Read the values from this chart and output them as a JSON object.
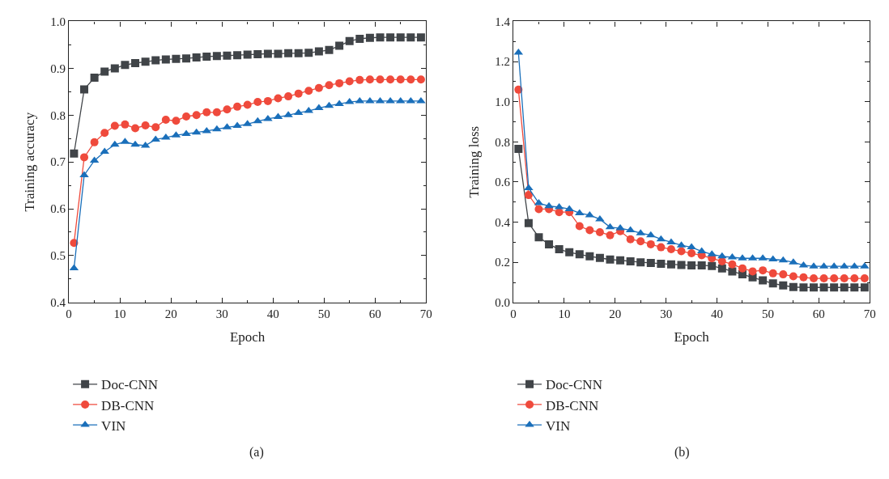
{
  "chart_data": [
    {
      "type": "line",
      "xlabel": "Epoch",
      "ylabel": "Training accuracy",
      "annotations": [
        "(a)"
      ],
      "x": [
        1,
        3,
        5,
        7,
        9,
        11,
        13,
        15,
        17,
        19,
        21,
        23,
        25,
        27,
        29,
        31,
        33,
        35,
        37,
        39,
        41,
        43,
        45,
        47,
        49,
        51,
        53,
        55,
        57,
        59,
        61,
        63,
        65,
        67,
        69
      ],
      "xlim": [
        0,
        70
      ],
      "xticks": [
        0,
        10,
        20,
        30,
        40,
        50,
        60,
        70
      ],
      "ylim": [
        0.4,
        1.0
      ],
      "yticks": [
        {
          "value": 0.4,
          "label": "0.4"
        },
        {
          "value": 0.5,
          "label": "0.5"
        },
        {
          "value": 0.6,
          "label": "0.6"
        },
        {
          "value": 0.7,
          "label": "0.7"
        },
        {
          "value": 0.8,
          "label": "0.8"
        },
        {
          "value": 0.9,
          "label": "0.9"
        },
        {
          "value": 1.0,
          "label": "1.0"
        }
      ],
      "legend": "bottom",
      "series": [
        {
          "name": "Doc-CNN",
          "color": "#404448",
          "marker": "square",
          "values": [
            0.718,
            0.855,
            0.88,
            0.893,
            0.9,
            0.907,
            0.911,
            0.914,
            0.917,
            0.919,
            0.92,
            0.921,
            0.923,
            0.925,
            0.926,
            0.927,
            0.928,
            0.929,
            0.93,
            0.931,
            0.931,
            0.932,
            0.932,
            0.933,
            0.936,
            0.939,
            0.948,
            0.958,
            0.963,
            0.965,
            0.966,
            0.966,
            0.966,
            0.966,
            0.966
          ]
        },
        {
          "name": "DB-CNN",
          "color": "#ef4a3c",
          "marker": "circle",
          "values": [
            0.527,
            0.71,
            0.742,
            0.762,
            0.777,
            0.78,
            0.772,
            0.778,
            0.774,
            0.79,
            0.788,
            0.797,
            0.8,
            0.806,
            0.806,
            0.812,
            0.818,
            0.822,
            0.828,
            0.83,
            0.836,
            0.84,
            0.846,
            0.852,
            0.858,
            0.864,
            0.868,
            0.872,
            0.875,
            0.876,
            0.876,
            0.876,
            0.876,
            0.876,
            0.876
          ]
        },
        {
          "name": "VIN",
          "color": "#1a6fba",
          "marker": "triangle",
          "values": [
            0.473,
            0.672,
            0.703,
            0.722,
            0.737,
            0.743,
            0.737,
            0.735,
            0.748,
            0.752,
            0.757,
            0.76,
            0.763,
            0.766,
            0.77,
            0.774,
            0.777,
            0.781,
            0.787,
            0.792,
            0.796,
            0.8,
            0.805,
            0.809,
            0.815,
            0.82,
            0.824,
            0.828,
            0.83,
            0.83,
            0.83,
            0.83,
            0.83,
            0.83,
            0.83
          ]
        }
      ]
    },
    {
      "type": "line",
      "xlabel": "Epoch",
      "ylabel": "Training loss",
      "annotations": [
        "(b)"
      ],
      "x": [
        1,
        3,
        5,
        7,
        9,
        11,
        13,
        15,
        17,
        19,
        21,
        23,
        25,
        27,
        29,
        31,
        33,
        35,
        37,
        39,
        41,
        43,
        45,
        47,
        49,
        51,
        53,
        55,
        57,
        59,
        61,
        63,
        65,
        67,
        69
      ],
      "xlim": [
        0,
        70
      ],
      "xticks": [
        0,
        10,
        20,
        30,
        40,
        50,
        60,
        70
      ],
      "ylim": [
        0.0,
        1.4
      ],
      "yticks": [
        {
          "value": 0,
          "label": "0.0"
        },
        {
          "value": 0.2,
          "label": "0.2"
        },
        {
          "value": 0.4,
          "label": "0.4"
        },
        {
          "value": 0.6,
          "label": "0.6"
        },
        {
          "value": 0.8,
          "label": "0.8"
        },
        {
          "value": 1.0,
          "label": "1.0"
        },
        {
          "value": 1.2,
          "label": "1.2"
        },
        {
          "value": 1.4,
          "label": "1.4"
        }
      ],
      "legend": "bottom",
      "series": [
        {
          "name": "Doc-CNN",
          "color": "#404448",
          "marker": "square",
          "values": [
            0.765,
            0.395,
            0.325,
            0.29,
            0.265,
            0.25,
            0.24,
            0.23,
            0.222,
            0.214,
            0.21,
            0.205,
            0.2,
            0.197,
            0.193,
            0.19,
            0.187,
            0.185,
            0.185,
            0.182,
            0.17,
            0.155,
            0.14,
            0.125,
            0.11,
            0.095,
            0.085,
            0.077,
            0.075,
            0.075,
            0.075,
            0.075,
            0.075,
            0.075,
            0.075
          ]
        },
        {
          "name": "DB-CNN",
          "color": "#ef4a3c",
          "marker": "circle",
          "values": [
            1.06,
            0.535,
            0.465,
            0.465,
            0.45,
            0.45,
            0.38,
            0.36,
            0.35,
            0.335,
            0.355,
            0.315,
            0.305,
            0.29,
            0.275,
            0.265,
            0.255,
            0.245,
            0.235,
            0.22,
            0.205,
            0.19,
            0.17,
            0.155,
            0.16,
            0.145,
            0.14,
            0.13,
            0.125,
            0.12,
            0.12,
            0.12,
            0.12,
            0.12,
            0.12
          ]
        },
        {
          "name": "VIN",
          "color": "#1a6fba",
          "marker": "triangle",
          "values": [
            1.245,
            0.57,
            0.495,
            0.48,
            0.475,
            0.465,
            0.445,
            0.435,
            0.415,
            0.375,
            0.37,
            0.36,
            0.345,
            0.335,
            0.315,
            0.3,
            0.285,
            0.275,
            0.255,
            0.24,
            0.23,
            0.225,
            0.22,
            0.22,
            0.22,
            0.215,
            0.21,
            0.2,
            0.185,
            0.18,
            0.18,
            0.18,
            0.18,
            0.18,
            0.18
          ]
        }
      ]
    }
  ]
}
